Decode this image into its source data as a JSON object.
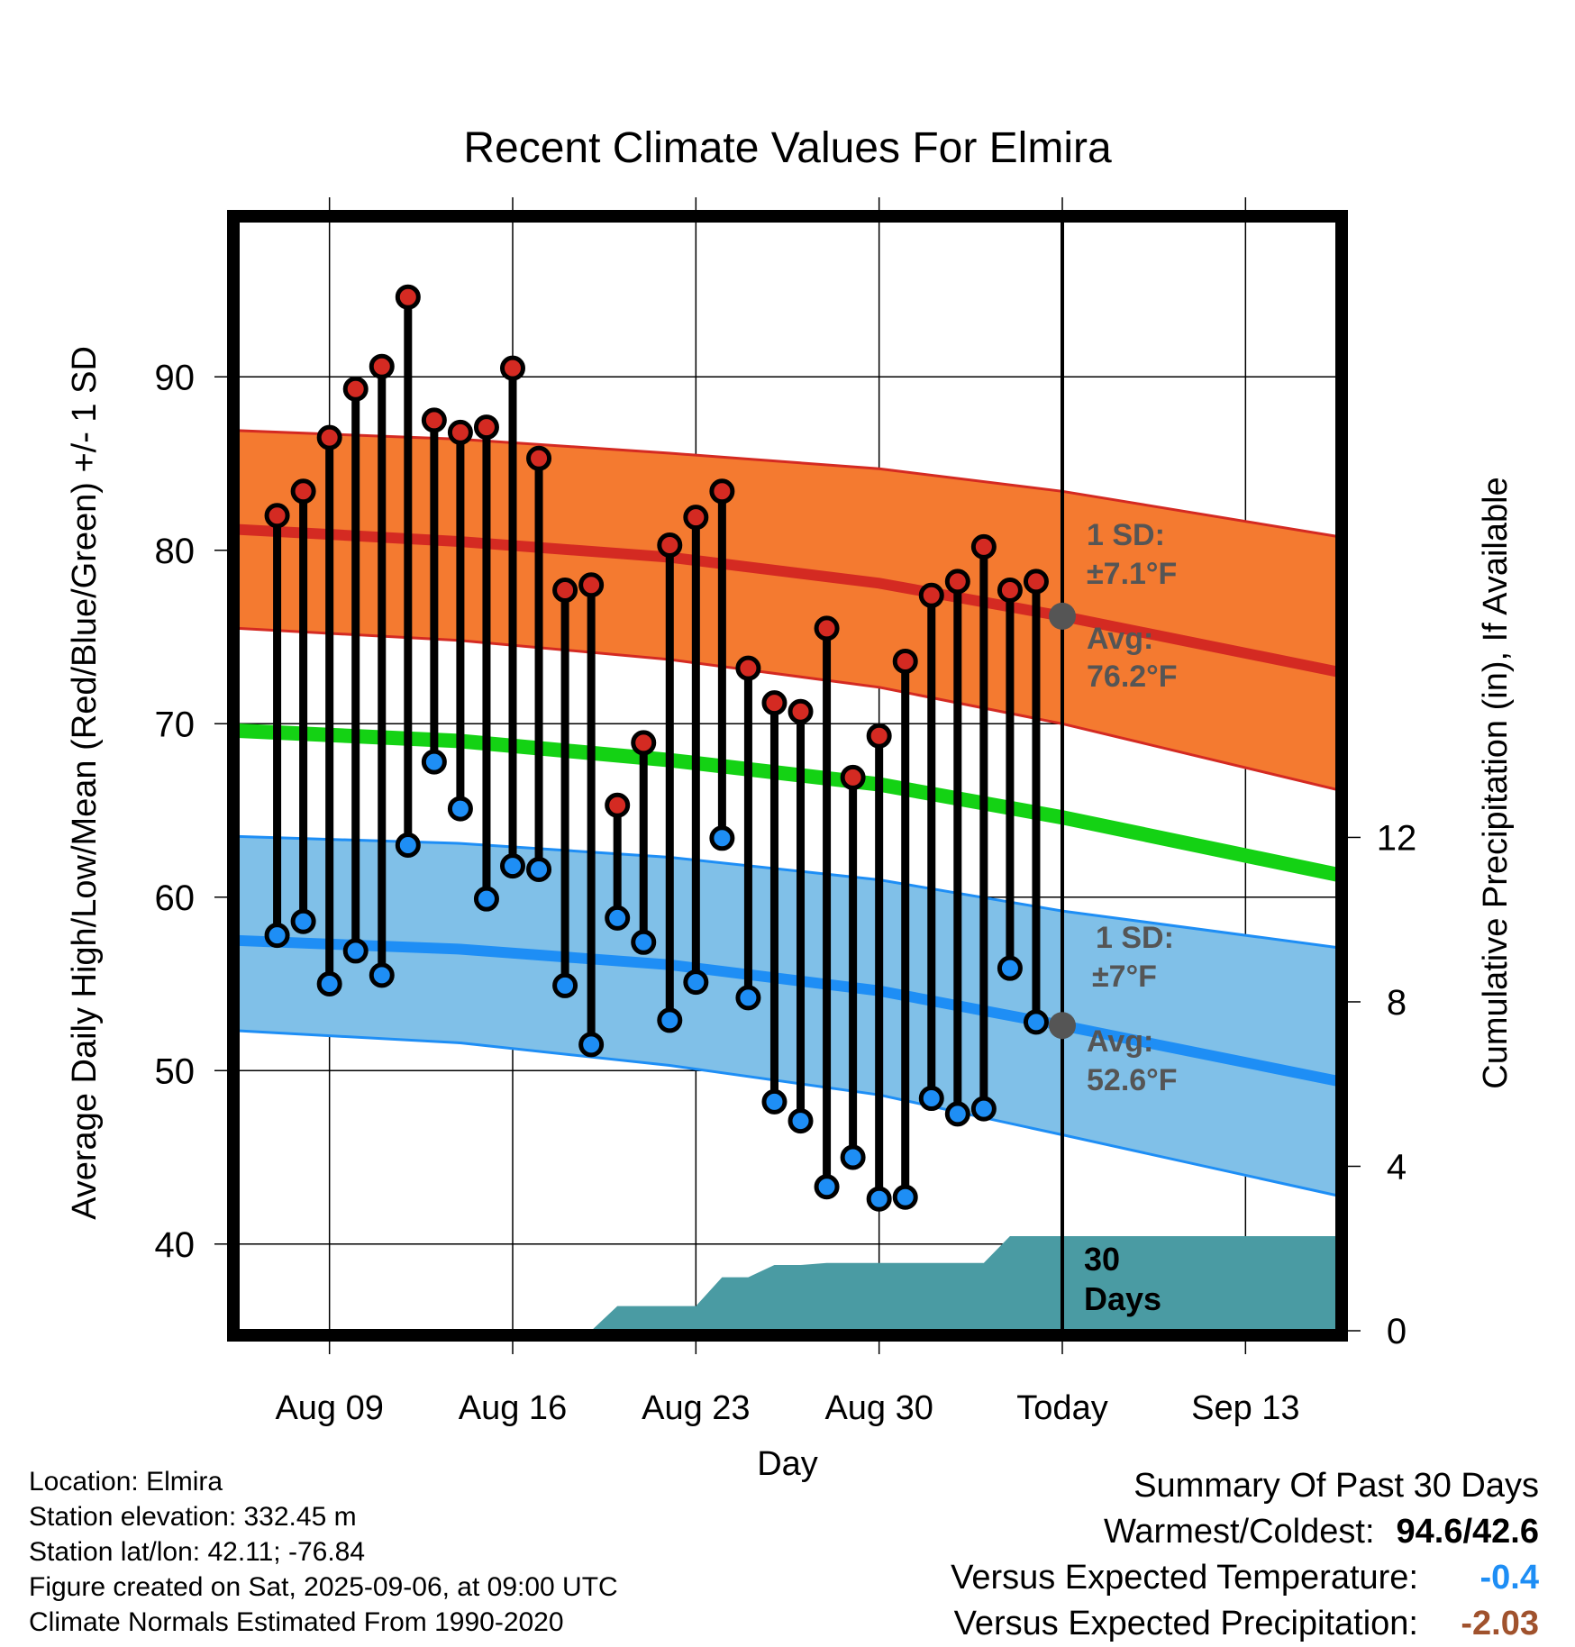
{
  "colors": {
    "high_band": "#f47a30",
    "high_line": "#d42a22",
    "low_band": "#80c0e8",
    "low_line": "#1e8ef5",
    "mean_line": "#14d214",
    "precip_fill": "#4a9ba3",
    "high_dot": "#d42a22",
    "low_dot": "#1e8ef5",
    "avg_dot": "#555555",
    "temp_anomaly": "#1e8ef5",
    "precip_anomaly": "#a0522d"
  },
  "chart_data": {
    "type": "line",
    "title": "Recent Climate Values For Elmira",
    "xlabel": "Day",
    "ylabel": "Average Daily High/Low/Mean (Red/Blue/Green) +/- 1 SD",
    "y2label": "Cumulative Precipitation (in), If Available",
    "ylim": [
      35,
      99
    ],
    "y2lim": [
      0,
      27
    ],
    "xlim": [
      -0.5,
      41.5
    ],
    "x_ticks": [
      {
        "x": 3,
        "label": "Aug 09"
      },
      {
        "x": 10,
        "label": "Aug 16"
      },
      {
        "x": 17,
        "label": "Aug 23"
      },
      {
        "x": 24,
        "label": "Aug 30"
      },
      {
        "x": 31,
        "label": "Today"
      },
      {
        "x": 38,
        "label": "Sep 13"
      }
    ],
    "y_ticks": [
      40,
      50,
      60,
      70,
      80,
      90
    ],
    "y2_ticks": [
      0,
      4,
      8,
      12
    ],
    "today_x": 31,
    "grid": true,
    "normals": {
      "x": [
        -0.5,
        8,
        16,
        24,
        31,
        41.5
      ],
      "high_mean": [
        81.2,
        80.5,
        79.6,
        78.1,
        76.2,
        73.0
      ],
      "high_upper": [
        86.9,
        86.4,
        85.6,
        84.7,
        83.4,
        80.8
      ],
      "high_lower": [
        75.5,
        74.8,
        73.7,
        72.1,
        70.0,
        66.2
      ],
      "mean": [
        69.6,
        69.0,
        67.9,
        66.5,
        64.6,
        61.3
      ],
      "low_mean": [
        57.5,
        57.0,
        56.1,
        54.6,
        52.6,
        49.4
      ],
      "low_upper": [
        63.5,
        63.1,
        62.3,
        61.0,
        59.2,
        57.1
      ],
      "low_lower": [
        52.3,
        51.6,
        50.3,
        48.6,
        46.3,
        42.8
      ]
    },
    "series": [
      {
        "name": "High",
        "x": [
          1,
          2,
          3,
          4,
          5,
          6,
          7,
          8,
          9,
          10,
          11,
          12,
          13,
          14,
          15,
          16,
          17,
          18,
          19,
          20,
          21,
          22,
          23,
          24,
          25,
          26,
          27,
          28,
          29,
          30
        ],
        "values": [
          82.0,
          83.4,
          86.5,
          89.3,
          90.6,
          94.6,
          87.5,
          86.8,
          87.1,
          90.5,
          85.3,
          77.7,
          78.0,
          65.3,
          68.9,
          80.3,
          81.9,
          83.4,
          73.2,
          71.2,
          70.7,
          75.5,
          66.9,
          69.3,
          73.6,
          77.4,
          78.2,
          80.2,
          77.7,
          78.2
        ]
      },
      {
        "name": "Low",
        "x": [
          1,
          2,
          3,
          4,
          5,
          6,
          7,
          8,
          9,
          10,
          11,
          12,
          13,
          14,
          15,
          16,
          17,
          18,
          19,
          20,
          21,
          22,
          23,
          24,
          25,
          26,
          27,
          28,
          29,
          30
        ],
        "values": [
          57.8,
          58.6,
          55.0,
          56.9,
          55.5,
          63.0,
          67.8,
          65.1,
          59.9,
          61.8,
          61.6,
          54.9,
          51.5,
          58.8,
          57.4,
          52.9,
          55.1,
          63.4,
          54.2,
          48.2,
          47.1,
          43.3,
          45.0,
          42.6,
          42.7,
          48.4,
          47.5,
          47.8,
          55.9,
          52.8
        ]
      },
      {
        "name": "Precip",
        "axis": "y2",
        "x": [
          13,
          14,
          17,
          18,
          19,
          20,
          21,
          22,
          23,
          24,
          25,
          26,
          27,
          28,
          29,
          30,
          31,
          32,
          41.5
        ],
        "values": [
          0,
          0.6,
          0.6,
          1.3,
          1.3,
          1.6,
          1.6,
          1.65,
          1.65,
          1.65,
          1.65,
          1.65,
          1.65,
          1.65,
          2.3,
          2.3,
          2.3,
          2.3,
          2.3
        ]
      }
    ],
    "annotations": {
      "high_sd_label": "1 SD:",
      "high_sd_value": "±7.1°F",
      "high_avg_label": "Avg:",
      "high_avg_value": "76.2°F",
      "low_sd_label": "1 SD:",
      "low_sd_value": "±7°F",
      "low_avg_label": "Avg:",
      "low_avg_value": "52.6°F",
      "days_label_1": "30",
      "days_label_2": "Days",
      "high_avg": 76.2,
      "low_avg": 52.6
    }
  },
  "footer": {
    "location": "Location: Elmira",
    "elevation": "Station elevation: 332.45 m",
    "latlon": "Station lat/lon: 42.11; -76.84",
    "created": "Figure created on Sat, 2025-09-06, at 09:00 UTC",
    "normals": "Climate Normals Estimated From 1990-2020"
  },
  "summary": {
    "title": "Summary Of Past 30 Days",
    "warm_cold_label": "Warmest/Coldest:",
    "warm_cold_value": "94.6/42.6",
    "temp_label": "Versus Expected Temperature:",
    "temp_value": "-0.4",
    "precip_label": "Versus Expected Precipitation:",
    "precip_value": "-2.03"
  }
}
